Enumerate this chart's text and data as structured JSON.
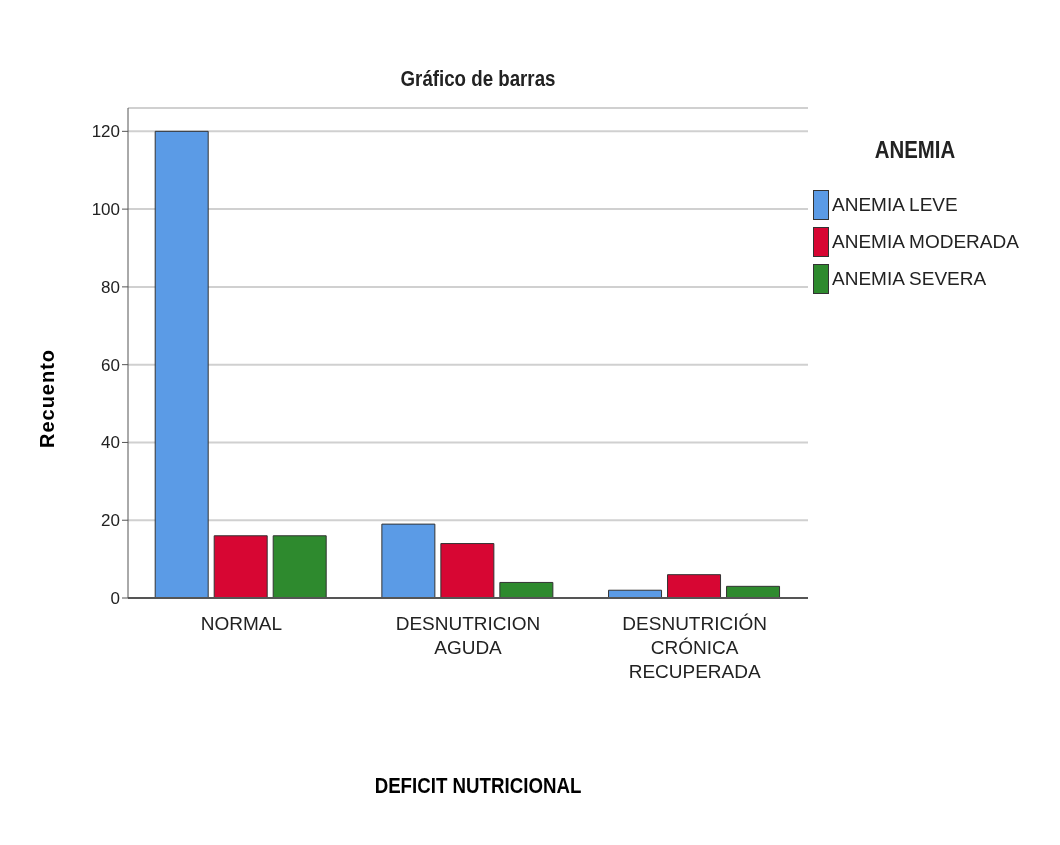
{
  "chart_data": {
    "type": "bar",
    "title": "Gráfico de barras",
    "xlabel": "DEFICIT NUTRICIONAL",
    "ylabel": "Recuento",
    "legend_title": "ANEMIA",
    "categories": [
      "NORMAL",
      "DESNUTRICION AGUDA",
      "DESNUTRICIÓN CRÓNICA RECUPERADA"
    ],
    "series": [
      {
        "name": "ANEMIA LEVE",
        "color": "#5b9be6",
        "values": [
          120,
          19,
          2
        ]
      },
      {
        "name": "ANEMIA MODERADA",
        "color": "#d70633",
        "values": [
          16,
          14,
          6
        ]
      },
      {
        "name": "ANEMIA SEVERA",
        "color": "#2e8a2e",
        "values": [
          16,
          4,
          3
        ]
      }
    ],
    "ylim": [
      0,
      126
    ],
    "yticks": [
      0,
      20,
      40,
      60,
      80,
      100,
      120
    ],
    "grid": "y",
    "legend": "top right"
  }
}
